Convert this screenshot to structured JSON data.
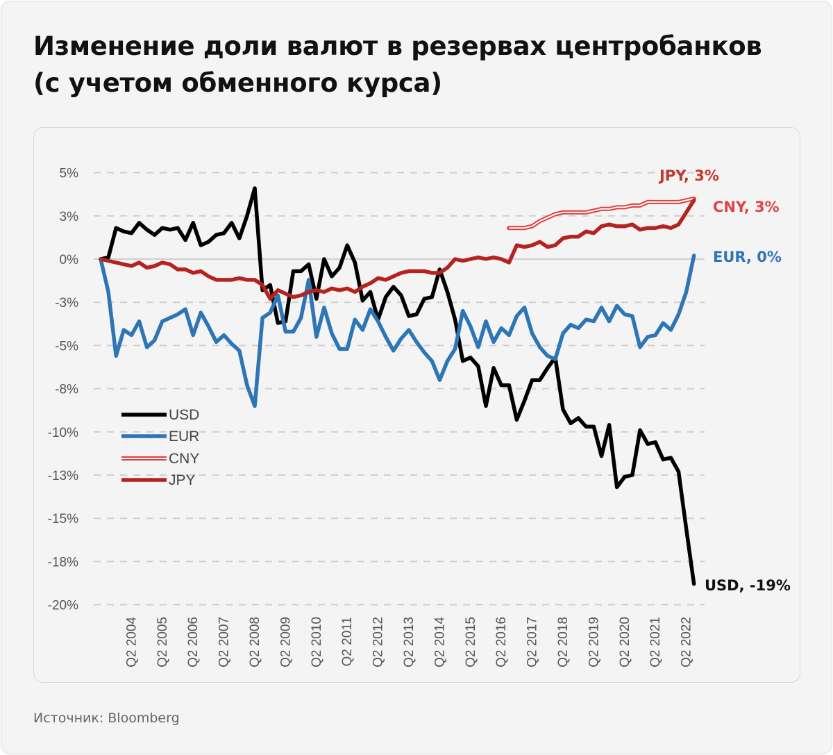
{
  "title_line1": "Изменение доли валют в резервах центробанков",
  "title_line2": "(с учетом обменного курса)",
  "source": "Источник: Bloomberg",
  "chart_data": {
    "type": "line",
    "title": "Изменение доли валют в резервах центробанков (с учетом обменного курса)",
    "ylim": [
      -20,
      5
    ],
    "grid": true,
    "legend_position": "bottom-left",
    "yticks": [
      {
        "value": 5,
        "label": "5%"
      },
      {
        "value": 2.5,
        "label": "3%"
      },
      {
        "value": 0,
        "label": "0%"
      },
      {
        "value": -2.5,
        "label": "-3%"
      },
      {
        "value": -5,
        "label": "-5%"
      },
      {
        "value": -7.5,
        "label": "-8%"
      },
      {
        "value": -10,
        "label": "-10%"
      },
      {
        "value": -12.5,
        "label": "-13%"
      },
      {
        "value": -15,
        "label": "-15%"
      },
      {
        "value": -17.5,
        "label": "-18%"
      },
      {
        "value": -20,
        "label": "-20%"
      }
    ],
    "xtick_labels": [
      "Q2 2004",
      "Q2 2005",
      "Q2 2006",
      "Q2 2007",
      "Q2 2008",
      "Q2 2009",
      "Q2 2010",
      "Q2 2011",
      "Q2 2012",
      "Q2 2013",
      "Q2 2014",
      "Q2 2015",
      "Q2 2016",
      "Q2 2017",
      "Q2 2018",
      "Q2 2019",
      "Q2 2020",
      "Q2 2021",
      "Q2 2022"
    ],
    "x_start": "Q2 2003",
    "x_end": "Q3 2022",
    "series": [
      {
        "name": "USD",
        "color": "#000000",
        "style": "solid",
        "end_label": "USD, -19%",
        "values": [
          0,
          0.1,
          1.8,
          1.6,
          1.5,
          2.1,
          1.7,
          1.4,
          1.8,
          1.7,
          1.8,
          1.1,
          2.1,
          0.8,
          1.0,
          1.4,
          1.5,
          2.1,
          1.2,
          2.5,
          4.1,
          -1.8,
          -1.5,
          -3.7,
          -3.6,
          -0.7,
          -0.7,
          -0.3,
          -2.3,
          0.0,
          -1.0,
          -0.5,
          0.8,
          -0.2,
          -2.4,
          -1.9,
          -3.5,
          -2.2,
          -1.6,
          -2.1,
          -3.3,
          -3.2,
          -2.3,
          -2.2,
          -0.6,
          -1.9,
          -3.5,
          -5.9,
          -5.7,
          -6.2,
          -8.5,
          -6.3,
          -7.3,
          -7.3,
          -9.3,
          -8.2,
          -7.0,
          -7.0,
          -6.3,
          -5.7,
          -8.7,
          -9.5,
          -9.2,
          -9.7,
          -9.7,
          -11.4,
          -9.6,
          -13.2,
          -12.6,
          -12.5,
          -9.9,
          -10.7,
          -10.6,
          -11.6,
          -11.5,
          -12.3,
          -15.6,
          -18.8
        ]
      },
      {
        "name": "EUR",
        "color": "#2e75b6",
        "style": "solid",
        "end_label": "EUR, 0%",
        "values": [
          0,
          -1.9,
          -5.6,
          -4.1,
          -4.4,
          -3.6,
          -5.1,
          -4.7,
          -3.6,
          -3.4,
          -3.2,
          -2.9,
          -4.4,
          -3.1,
          -3.9,
          -4.8,
          -4.4,
          -4.9,
          -5.3,
          -7.3,
          -8.5,
          -3.4,
          -3.1,
          -2.1,
          -4.2,
          -4.2,
          -3.4,
          -1.2,
          -4.5,
          -2.8,
          -4.3,
          -5.2,
          -5.2,
          -3.5,
          -4.1,
          -2.9,
          -3.6,
          -4.5,
          -5.3,
          -4.6,
          -4.1,
          -4.8,
          -5.4,
          -5.9,
          -7.0,
          -5.9,
          -5.2,
          -3.0,
          -3.9,
          -5.1,
          -3.6,
          -4.8,
          -4.0,
          -4.4,
          -3.3,
          -2.8,
          -4.3,
          -5.1,
          -5.6,
          -5.8,
          -4.3,
          -3.8,
          -4.0,
          -3.5,
          -3.6,
          -2.8,
          -3.6,
          -2.7,
          -3.2,
          -3.3,
          -5.1,
          -4.5,
          -4.4,
          -3.7,
          -4.1,
          -3.2,
          -1.9,
          0.2
        ]
      },
      {
        "name": "CNY",
        "color": "#e03c3c",
        "style": "double",
        "end_label": "CNY, 3%",
        "values": [
          null,
          null,
          null,
          null,
          null,
          null,
          null,
          null,
          null,
          null,
          null,
          null,
          null,
          null,
          null,
          null,
          null,
          null,
          null,
          null,
          null,
          null,
          null,
          null,
          null,
          null,
          null,
          null,
          null,
          null,
          null,
          null,
          null,
          null,
          null,
          null,
          null,
          null,
          null,
          null,
          null,
          null,
          null,
          null,
          null,
          null,
          null,
          null,
          null,
          null,
          null,
          null,
          null,
          1.8,
          1.8,
          1.8,
          1.9,
          2.2,
          2.4,
          2.6,
          2.7,
          2.7,
          2.7,
          2.7,
          2.8,
          2.9,
          2.9,
          3.0,
          3.0,
          3.1,
          3.1,
          3.3,
          3.3,
          3.3,
          3.3,
          3.3,
          3.4,
          3.5
        ]
      },
      {
        "name": "JPY",
        "color": "#b5231f",
        "style": "solid",
        "end_label": "JPY, 3%",
        "values": [
          0,
          -0.1,
          -0.2,
          -0.3,
          -0.4,
          -0.2,
          -0.5,
          -0.4,
          -0.2,
          -0.3,
          -0.6,
          -0.6,
          -0.8,
          -0.7,
          -1.0,
          -1.2,
          -1.2,
          -1.2,
          -1.1,
          -1.2,
          -1.2,
          -1.5,
          -2.3,
          -1.8,
          -2.0,
          -2.2,
          -2.1,
          -1.9,
          -1.8,
          -1.9,
          -1.7,
          -1.8,
          -1.7,
          -1.9,
          -1.6,
          -1.4,
          -1.1,
          -1.2,
          -1.0,
          -0.8,
          -0.7,
          -0.7,
          -0.7,
          -0.8,
          -0.8,
          -0.5,
          0.0,
          -0.1,
          0.0,
          0.1,
          0.0,
          0.1,
          0.0,
          -0.2,
          0.8,
          0.7,
          0.8,
          1.0,
          0.7,
          0.8,
          1.2,
          1.3,
          1.3,
          1.6,
          1.5,
          1.9,
          2.0,
          1.9,
          1.9,
          2.0,
          1.7,
          1.8,
          1.8,
          1.9,
          1.8,
          2.0,
          2.7,
          3.4
        ]
      }
    ]
  }
}
